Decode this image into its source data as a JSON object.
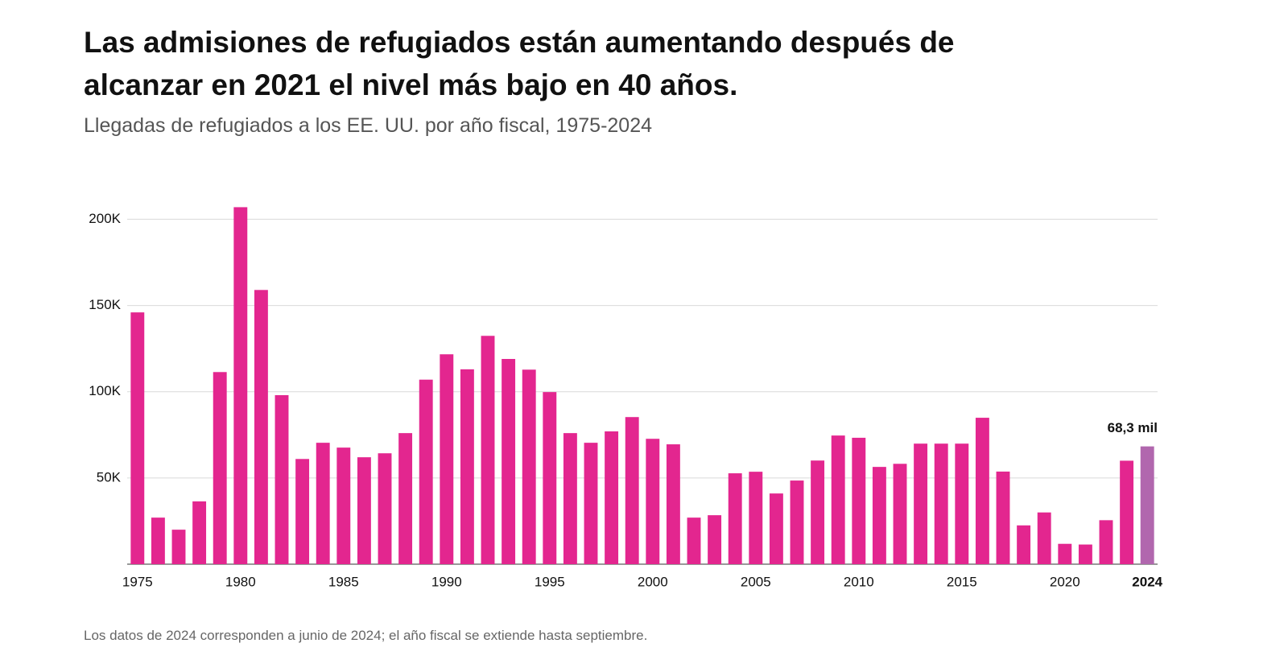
{
  "chart_data": {
    "type": "bar",
    "title": "Las admisiones de refugiados están aumentando después de alcanzar en 2021 el nivel más bajo en 40 años.",
    "subtitle": "Llegadas de refugiados a los EE. UU. por año fiscal, 1975-2024",
    "footnote": "Los datos de 2024 corresponden a junio de 2024; el año fiscal se extiende hasta septiembre.",
    "categories": [
      "1975",
      null,
      null,
      null,
      null,
      "1980",
      null,
      null,
      null,
      null,
      "1985",
      null,
      null,
      null,
      null,
      "1990",
      null,
      null,
      null,
      null,
      "1995",
      null,
      null,
      null,
      null,
      "2000",
      null,
      null,
      null,
      null,
      "2005",
      null,
      null,
      null,
      null,
      "2010",
      null,
      null,
      null,
      null,
      "2015",
      null,
      null,
      null,
      null,
      "2020",
      null,
      null,
      null,
      "2024"
    ],
    "values": [
      146000,
      27000,
      20000,
      36400,
      111400,
      207000,
      159000,
      98000,
      61000,
      70400,
      67600,
      62000,
      64300,
      76000,
      107000,
      121700,
      113000,
      132400,
      119000,
      112800,
      99800,
      76000,
      70400,
      77000,
      85300,
      72700,
      69500,
      27000,
      28400,
      52700,
      53600,
      41000,
      48500,
      60100,
      74600,
      73300,
      56400,
      58200,
      69900,
      69900,
      69900,
      84900,
      53700,
      22500,
      30000,
      11800,
      11400,
      25500,
      60000,
      68300
    ],
    "value_labels": [
      null,
      null,
      null,
      null,
      null,
      null,
      null,
      null,
      null,
      null,
      null,
      null,
      null,
      null,
      null,
      null,
      null,
      null,
      null,
      null,
      null,
      null,
      null,
      null,
      null,
      null,
      null,
      null,
      null,
      null,
      null,
      null,
      null,
      null,
      null,
      null,
      null,
      null,
      null,
      null,
      null,
      null,
      null,
      null,
      null,
      null,
      null,
      null,
      null,
      "68,3 mil"
    ],
    "color": "#e3268f",
    "highlight_color": "#b167ae",
    "highlight_categories": [
      "2024"
    ],
    "ylim": [
      0,
      210000
    ],
    "yticks": [
      {
        "value": 50000,
        "label": "50K"
      },
      {
        "value": 100000,
        "label": "100K"
      },
      {
        "value": 150000,
        "label": "150K"
      },
      {
        "value": 200000,
        "label": "200K"
      }
    ],
    "grid": true
  }
}
